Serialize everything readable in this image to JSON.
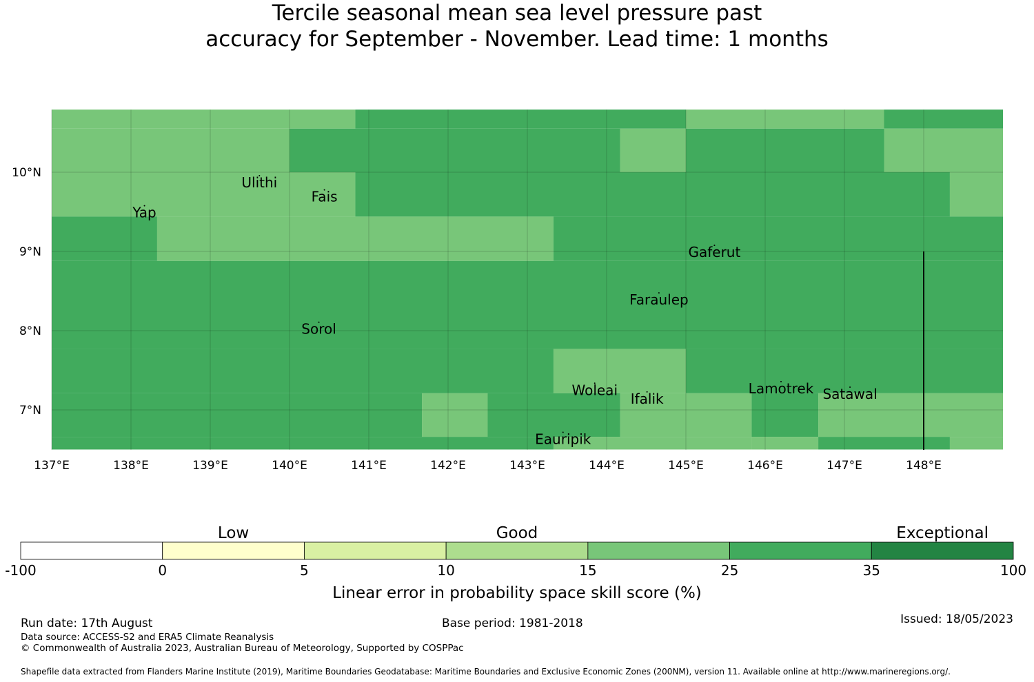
{
  "title": {
    "line1": "Tercile seasonal mean sea level pressure past",
    "line2": "accuracy for September - November. Lead time: 1 months"
  },
  "map": {
    "lon_range": [
      137,
      149
    ],
    "lat_range": [
      6.5,
      10.8
    ],
    "x_ticks": [
      {
        "value": 137,
        "label": "137°E"
      },
      {
        "value": 138,
        "label": "138°E"
      },
      {
        "value": 139,
        "label": "139°E"
      },
      {
        "value": 140,
        "label": "140°E"
      },
      {
        "value": 141,
        "label": "141°E"
      },
      {
        "value": 142,
        "label": "142°E"
      },
      {
        "value": 143,
        "label": "143°E"
      },
      {
        "value": 144,
        "label": "144°E"
      },
      {
        "value": 145,
        "label": "145°E"
      },
      {
        "value": 146,
        "label": "146°E"
      },
      {
        "value": 147,
        "label": "147°E"
      },
      {
        "value": 148,
        "label": "148°E"
      }
    ],
    "y_ticks": [
      {
        "value": 7,
        "label": "7°N"
      },
      {
        "value": 8,
        "label": "8°N"
      },
      {
        "value": 9,
        "label": "9°N"
      },
      {
        "value": 10,
        "label": "10°N"
      }
    ],
    "cells": [
      {
        "lon": [
          137.0,
          140.0
        ],
        "lat": [
          10.55,
          10.8
        ],
        "cls": "15-25"
      },
      {
        "lon": [
          140.0,
          140.83
        ],
        "lat": [
          10.55,
          10.8
        ],
        "cls": "15-25"
      },
      {
        "lon": [
          140.83,
          145.0
        ],
        "lat": [
          10.55,
          10.8
        ],
        "cls": "25-35"
      },
      {
        "lon": [
          145.0,
          147.5
        ],
        "lat": [
          10.55,
          10.8
        ],
        "cls": "15-25"
      },
      {
        "lon": [
          147.5,
          149.0
        ],
        "lat": [
          10.55,
          10.8
        ],
        "cls": "25-35"
      },
      {
        "lon": [
          137.0,
          140.0
        ],
        "lat": [
          10.0,
          10.55
        ],
        "cls": "15-25"
      },
      {
        "lon": [
          140.0,
          144.17
        ],
        "lat": [
          10.0,
          10.55
        ],
        "cls": "25-35"
      },
      {
        "lon": [
          144.17,
          145.0
        ],
        "lat": [
          10.0,
          10.55
        ],
        "cls": "15-25"
      },
      {
        "lon": [
          145.0,
          147.5
        ],
        "lat": [
          10.0,
          10.55
        ],
        "cls": "25-35"
      },
      {
        "lon": [
          147.5,
          149.0
        ],
        "lat": [
          10.0,
          10.55
        ],
        "cls": "15-25"
      },
      {
        "lon": [
          137.0,
          140.83
        ],
        "lat": [
          9.44,
          10.0
        ],
        "cls": "15-25"
      },
      {
        "lon": [
          140.83,
          148.33
        ],
        "lat": [
          9.44,
          10.0
        ],
        "cls": "25-35"
      },
      {
        "lon": [
          148.33,
          149.0
        ],
        "lat": [
          9.44,
          10.0
        ],
        "cls": "15-25"
      },
      {
        "lon": [
          137.0,
          138.33
        ],
        "lat": [
          8.88,
          9.44
        ],
        "cls": "25-35"
      },
      {
        "lon": [
          138.33,
          143.33
        ],
        "lat": [
          8.88,
          9.44
        ],
        "cls": "15-25"
      },
      {
        "lon": [
          143.33,
          149.0
        ],
        "lat": [
          8.88,
          9.44
        ],
        "cls": "25-35"
      },
      {
        "lon": [
          137.0,
          149.0
        ],
        "lat": [
          7.77,
          8.88
        ],
        "cls": "25-35"
      },
      {
        "lon": [
          137.0,
          143.33
        ],
        "lat": [
          7.21,
          7.77
        ],
        "cls": "25-35"
      },
      {
        "lon": [
          143.33,
          145.0
        ],
        "lat": [
          7.21,
          7.77
        ],
        "cls": "15-25"
      },
      {
        "lon": [
          145.0,
          149.0
        ],
        "lat": [
          7.21,
          7.77
        ],
        "cls": "25-35"
      },
      {
        "lon": [
          137.0,
          141.67
        ],
        "lat": [
          6.66,
          7.21
        ],
        "cls": "25-35"
      },
      {
        "lon": [
          141.67,
          142.5
        ],
        "lat": [
          6.66,
          7.21
        ],
        "cls": "15-25"
      },
      {
        "lon": [
          142.5,
          144.17
        ],
        "lat": [
          6.66,
          7.21
        ],
        "cls": "25-35"
      },
      {
        "lon": [
          144.17,
          145.83
        ],
        "lat": [
          6.66,
          7.21
        ],
        "cls": "15-25"
      },
      {
        "lon": [
          145.83,
          146.67
        ],
        "lat": [
          6.66,
          7.21
        ],
        "cls": "25-35"
      },
      {
        "lon": [
          146.67,
          149.0
        ],
        "lat": [
          6.66,
          7.21
        ],
        "cls": "15-25"
      },
      {
        "lon": [
          137.0,
          143.33
        ],
        "lat": [
          6.5,
          6.66
        ],
        "cls": "25-35"
      },
      {
        "lon": [
          143.33,
          145.83
        ],
        "lat": [
          6.5,
          6.66
        ],
        "cls": "15-25"
      },
      {
        "lon": [
          145.83,
          146.67
        ],
        "lat": [
          6.5,
          6.66
        ],
        "cls": "15-25"
      },
      {
        "lon": [
          146.67,
          148.33
        ],
        "lat": [
          6.5,
          6.66
        ],
        "cls": "25-35"
      },
      {
        "lon": [
          148.33,
          149.0
        ],
        "lat": [
          6.5,
          6.66
        ],
        "cls": "15-25"
      }
    ],
    "places": [
      {
        "name": "Yap",
        "lon": 138.17,
        "lat": 9.49
      },
      {
        "name": "Ulithi",
        "lon": 139.62,
        "lat": 9.87
      },
      {
        "name": "Fais",
        "lon": 140.44,
        "lat": 9.69
      },
      {
        "name": "Gaferut",
        "lon": 145.36,
        "lat": 8.99
      },
      {
        "name": "Faraulep",
        "lon": 144.66,
        "lat": 8.39
      },
      {
        "name": "Sorol",
        "lon": 140.37,
        "lat": 8.02
      },
      {
        "name": "Woleai",
        "lon": 143.85,
        "lat": 7.25
      },
      {
        "name": "Ifalik",
        "lon": 144.51,
        "lat": 7.14
      },
      {
        "name": "Lamotrek",
        "lon": 146.2,
        "lat": 7.27
      },
      {
        "name": "Satawal",
        "lon": 147.07,
        "lat": 7.2
      },
      {
        "name": "Eauripik",
        "lon": 143.45,
        "lat": 6.63
      }
    ],
    "boundary_line": {
      "lon": 148.0,
      "lat": [
        6.5,
        9.0
      ]
    }
  },
  "legend": {
    "categories": [
      {
        "label": "Low",
        "center_tick": 1
      },
      {
        "label": "Good",
        "center_tick": 3
      },
      {
        "label": "Exceptional",
        "center_tick": 6
      }
    ],
    "ticks": [
      "-100",
      "0",
      "5",
      "10",
      "15",
      "25",
      "35",
      "100"
    ],
    "colors": [
      "#ffffff",
      "#ffffcc",
      "#d9f0a3",
      "#addd8e",
      "#78c679",
      "#41ab5d",
      "#238443"
    ],
    "class_colors": {
      "15-25": "#78c679",
      "25-35": "#41ab5d"
    },
    "xlabel": "Linear error in probability space skill score (%)"
  },
  "footer": {
    "run_date": "Run date: 17th August",
    "base_period": "Base period: 1981-2018",
    "issued": "Issued: 18/05/2023",
    "data_source": "Data source: ACCESS-S2 and ERA5 Climate Reanalysis",
    "copyright": "© Commonwealth of Australia 2023, Australian Bureau of Meteorology, Supported by COSPPac",
    "shapefile": "Shapefile data extracted from Flanders Marine Institute (2019), Maritime Boundaries Geodatabase: Maritime Boundaries and Exclusive Economic Zones (200NM), version 11. Available online at http://www.marineregions.org/."
  }
}
